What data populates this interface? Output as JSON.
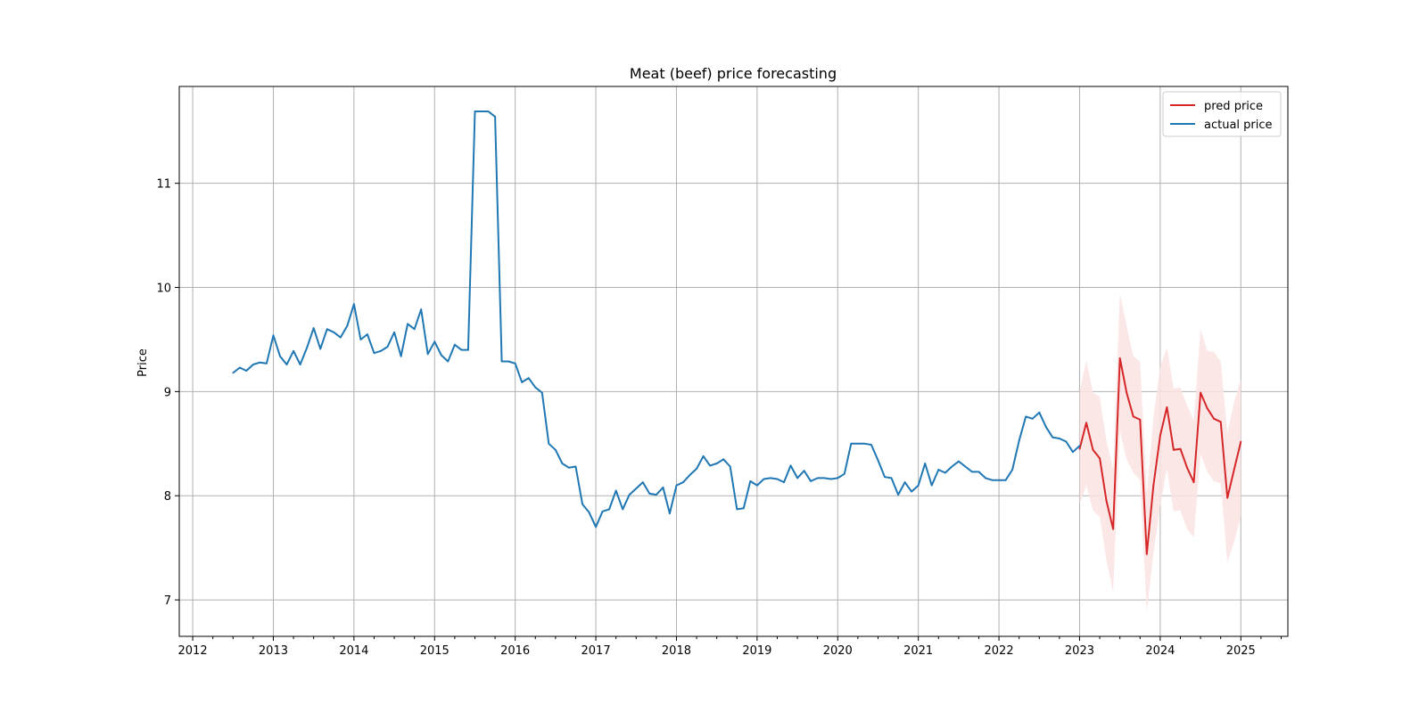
{
  "chart_data": {
    "type": "line",
    "title": "Meat (beef) price forecasting",
    "xlabel": "",
    "ylabel": "Price",
    "x_ticks": [
      "2012",
      "2013",
      "2014",
      "2015",
      "2016",
      "2017",
      "2018",
      "2019",
      "2020",
      "2021",
      "2022",
      "2023",
      "2024",
      "2025"
    ],
    "y_ticks": [
      7,
      8,
      9,
      10,
      11
    ],
    "xlim": [
      "2011-11",
      "2025-08"
    ],
    "ylim": [
      6.65,
      11.93
    ],
    "grid": true,
    "legend_position": "top-right",
    "colors": {
      "pred": "#d62728",
      "actual": "#1f77b4",
      "band": "#fbe3e3",
      "grid": "#b0b0b0"
    },
    "series": [
      {
        "name": "pred price",
        "color": "#d62728",
        "x": [
          "2023-01",
          "2023-02",
          "2023-03",
          "2023-04",
          "2023-05",
          "2023-06",
          "2023-07",
          "2023-08",
          "2023-09",
          "2023-10",
          "2023-11",
          "2023-12",
          "2024-01",
          "2024-02",
          "2024-03",
          "2024-04",
          "2024-05",
          "2024-06",
          "2024-07",
          "2024-08",
          "2024-09",
          "2024-10",
          "2024-11",
          "2024-12",
          "2025-01"
        ],
        "values": [
          8.45,
          8.7,
          8.44,
          8.36,
          7.95,
          7.68,
          9.32,
          8.99,
          8.76,
          8.73,
          7.44,
          8.1,
          8.58,
          8.85,
          8.44,
          8.45,
          8.27,
          8.13,
          8.99,
          8.84,
          8.74,
          8.71,
          7.98,
          8.25,
          8.52
        ],
        "lower": [
          7.92,
          8.1,
          7.86,
          7.8,
          7.38,
          7.08,
          8.62,
          8.35,
          8.22,
          8.15,
          6.88,
          7.45,
          7.9,
          8.26,
          7.85,
          7.86,
          7.68,
          7.6,
          8.4,
          8.23,
          8.14,
          8.12,
          7.36,
          7.56,
          7.8
        ],
        "upper": [
          9.0,
          9.3,
          8.99,
          8.95,
          8.52,
          8.26,
          9.94,
          9.63,
          9.34,
          9.29,
          8.02,
          8.76,
          9.24,
          9.42,
          9.03,
          9.04,
          8.87,
          8.72,
          9.6,
          9.39,
          9.38,
          9.29,
          8.6,
          8.9,
          9.12
        ]
      },
      {
        "name": "actual price",
        "color": "#1f77b4",
        "x": [
          "2012-07",
          "2012-08",
          "2012-09",
          "2012-10",
          "2012-11",
          "2012-12",
          "2013-01",
          "2013-02",
          "2013-03",
          "2013-04",
          "2013-05",
          "2013-06",
          "2013-07",
          "2013-08",
          "2013-09",
          "2013-10",
          "2013-11",
          "2013-12",
          "2014-01",
          "2014-02",
          "2014-03",
          "2014-04",
          "2014-05",
          "2014-06",
          "2014-07",
          "2014-08",
          "2014-09",
          "2014-10",
          "2014-11",
          "2014-12",
          "2015-01",
          "2015-02",
          "2015-03",
          "2015-04",
          "2015-05",
          "2015-06",
          "2015-07",
          "2015-08",
          "2015-09",
          "2015-10",
          "2015-11",
          "2015-12",
          "2016-01",
          "2016-02",
          "2016-03",
          "2016-04",
          "2016-05",
          "2016-06",
          "2016-07",
          "2016-08",
          "2016-09",
          "2016-10",
          "2016-11",
          "2016-12",
          "2017-01",
          "2017-02",
          "2017-03",
          "2017-04",
          "2017-05",
          "2017-06",
          "2017-07",
          "2017-08",
          "2017-09",
          "2017-10",
          "2017-11",
          "2017-12",
          "2018-01",
          "2018-02",
          "2018-03",
          "2018-04",
          "2018-05",
          "2018-06",
          "2018-07",
          "2018-08",
          "2018-09",
          "2018-10",
          "2018-11",
          "2018-12",
          "2019-01",
          "2019-02",
          "2019-03",
          "2019-04",
          "2019-05",
          "2019-06",
          "2019-07",
          "2019-08",
          "2019-09",
          "2019-10",
          "2019-11",
          "2019-12",
          "2020-01",
          "2020-02",
          "2020-03",
          "2020-04",
          "2020-05",
          "2020-06",
          "2020-07",
          "2020-08",
          "2020-09",
          "2020-10",
          "2020-11",
          "2020-12",
          "2021-01",
          "2021-02",
          "2021-03",
          "2021-04",
          "2021-05",
          "2021-06",
          "2021-07",
          "2021-08",
          "2021-09",
          "2021-10",
          "2021-11",
          "2021-12",
          "2022-01",
          "2022-02",
          "2022-03",
          "2022-04",
          "2022-05",
          "2022-06",
          "2022-07",
          "2022-08",
          "2022-09",
          "2022-10",
          "2022-11",
          "2022-12",
          "2023-01"
        ],
        "values": [
          9.18,
          9.23,
          9.2,
          9.26,
          9.28,
          9.27,
          9.54,
          9.34,
          9.26,
          9.39,
          9.26,
          9.42,
          9.61,
          9.41,
          9.6,
          9.57,
          9.52,
          9.63,
          9.84,
          9.5,
          9.55,
          9.37,
          9.39,
          9.43,
          9.57,
          9.34,
          9.65,
          9.6,
          9.79,
          9.36,
          9.48,
          9.35,
          9.29,
          9.45,
          9.4,
          9.4,
          11.69,
          11.69,
          11.69,
          11.64,
          9.29,
          9.29,
          9.27,
          9.09,
          9.13,
          9.04,
          8.99,
          8.5,
          8.44,
          8.31,
          8.27,
          8.28,
          7.92,
          7.84,
          7.7,
          7.85,
          7.87,
          8.05,
          7.87,
          8.01,
          8.07,
          8.13,
          8.02,
          8.01,
          8.08,
          7.83,
          8.1,
          8.13,
          8.2,
          8.26,
          8.38,
          8.29,
          8.31,
          8.35,
          8.28,
          7.87,
          7.88,
          8.14,
          8.1,
          8.16,
          8.17,
          8.16,
          8.13,
          8.29,
          8.17,
          8.24,
          8.14,
          8.17,
          8.17,
          8.16,
          8.17,
          8.21,
          8.5,
          8.5,
          8.5,
          8.49,
          8.34,
          8.18,
          8.17,
          8.01,
          8.13,
          8.04,
          8.1,
          8.31,
          8.1,
          8.25,
          8.22,
          8.28,
          8.33,
          8.28,
          8.23,
          8.23,
          8.17,
          8.15,
          8.15,
          8.15,
          8.25,
          8.53,
          8.76,
          8.74,
          8.8,
          8.66,
          8.56,
          8.55,
          8.52,
          8.42,
          8.48
        ]
      }
    ]
  }
}
